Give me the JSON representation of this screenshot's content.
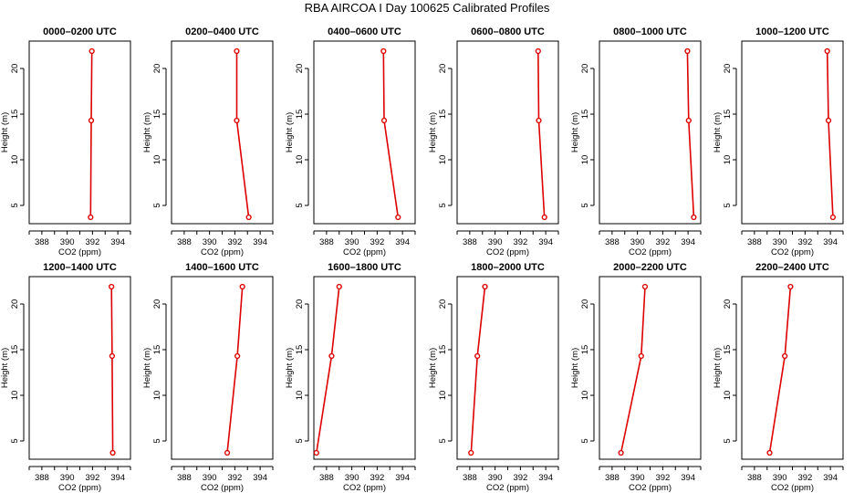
{
  "figure": {
    "title": "RBA AIRCOA I  Day 100625  Calibrated Profiles",
    "colors": {
      "series": "#dd0000",
      "axes": "#000000",
      "background": "#ffffff"
    }
  },
  "chart_data": [
    {
      "type": "line",
      "title": "0000–0200 UTC",
      "xlabel": "CO2 (ppm)",
      "ylabel": "Height (m)",
      "xlim": [
        387,
        395
      ],
      "ylim": [
        3,
        23
      ],
      "xticks": [
        388,
        390,
        392,
        394
      ],
      "yticks": [
        5,
        10,
        15,
        20
      ],
      "series": [
        {
          "x": [
            391.85,
            391.9,
            391.95
          ],
          "y": [
            3.7,
            14.3,
            21.9
          ]
        }
      ]
    },
    {
      "type": "line",
      "title": "0200–0400 UTC",
      "xlabel": "CO2 (ppm)",
      "ylabel": "Height (m)",
      "xlim": [
        387,
        395
      ],
      "ylim": [
        3,
        23
      ],
      "xticks": [
        388,
        390,
        392,
        394
      ],
      "yticks": [
        5,
        10,
        15,
        20
      ],
      "series": [
        {
          "x": [
            393.1,
            392.15,
            392.15
          ],
          "y": [
            3.7,
            14.3,
            21.9
          ]
        }
      ]
    },
    {
      "type": "line",
      "title": "0400–0600 UTC",
      "xlabel": "CO2 (ppm)",
      "ylabel": "Height (m)",
      "xlim": [
        387,
        395
      ],
      "ylim": [
        3,
        23
      ],
      "xticks": [
        388,
        390,
        392,
        394
      ],
      "yticks": [
        5,
        10,
        15,
        20
      ],
      "series": [
        {
          "x": [
            393.65,
            392.55,
            392.5
          ],
          "y": [
            3.7,
            14.3,
            21.9
          ]
        }
      ]
    },
    {
      "type": "line",
      "title": "0600–0800 UTC",
      "xlabel": "CO2 (ppm)",
      "ylabel": "Height (m)",
      "xlim": [
        387,
        395
      ],
      "ylim": [
        3,
        23
      ],
      "xticks": [
        388,
        390,
        392,
        394
      ],
      "yticks": [
        5,
        10,
        15,
        20
      ],
      "series": [
        {
          "x": [
            393.9,
            393.45,
            393.4
          ],
          "y": [
            3.7,
            14.3,
            21.9
          ]
        }
      ]
    },
    {
      "type": "line",
      "title": "0800–1000 UTC",
      "xlabel": "CO2 (ppm)",
      "ylabel": "Height (m)",
      "xlim": [
        387,
        395
      ],
      "ylim": [
        3,
        23
      ],
      "xticks": [
        388,
        390,
        392,
        394
      ],
      "yticks": [
        5,
        10,
        15,
        20
      ],
      "series": [
        {
          "x": [
            394.45,
            394.05,
            393.95
          ],
          "y": [
            3.7,
            14.3,
            21.9
          ]
        }
      ]
    },
    {
      "type": "line",
      "title": "1000–1200 UTC",
      "xlabel": "CO2 (ppm)",
      "ylabel": "Height (m)",
      "xlim": [
        387,
        395
      ],
      "ylim": [
        3,
        23
      ],
      "xticks": [
        388,
        390,
        392,
        394
      ],
      "yticks": [
        5,
        10,
        15,
        20
      ],
      "series": [
        {
          "x": [
            394.2,
            393.85,
            393.75
          ],
          "y": [
            3.7,
            14.3,
            21.9
          ]
        }
      ]
    },
    {
      "type": "line",
      "title": "1200–1400 UTC",
      "xlabel": "CO2 (ppm)",
      "ylabel": "Height (m)",
      "xlim": [
        387,
        395
      ],
      "ylim": [
        3,
        23
      ],
      "xticks": [
        388,
        390,
        392,
        394
      ],
      "yticks": [
        5,
        10,
        15,
        20
      ],
      "series": [
        {
          "x": [
            393.6,
            393.55,
            393.5
          ],
          "y": [
            3.7,
            14.3,
            21.9
          ]
        }
      ]
    },
    {
      "type": "line",
      "title": "1400–1600 UTC",
      "xlabel": "CO2 (ppm)",
      "ylabel": "Height (m)",
      "xlim": [
        387,
        395
      ],
      "ylim": [
        3,
        23
      ],
      "xticks": [
        388,
        390,
        392,
        394
      ],
      "yticks": [
        5,
        10,
        15,
        20
      ],
      "series": [
        {
          "x": [
            391.4,
            392.2,
            392.6
          ],
          "y": [
            3.7,
            14.3,
            21.9
          ]
        }
      ]
    },
    {
      "type": "line",
      "title": "1600–1800 UTC",
      "xlabel": "CO2 (ppm)",
      "ylabel": "Height (m)",
      "xlim": [
        387,
        395
      ],
      "ylim": [
        3,
        23
      ],
      "xticks": [
        388,
        390,
        392,
        394
      ],
      "yticks": [
        5,
        10,
        15,
        20
      ],
      "series": [
        {
          "x": [
            387.2,
            388.4,
            389.0
          ],
          "y": [
            3.7,
            14.3,
            21.9
          ]
        }
      ]
    },
    {
      "type": "line",
      "title": "1800–2000 UTC",
      "xlabel": "CO2 (ppm)",
      "ylabel": "Height (m)",
      "xlim": [
        387,
        395
      ],
      "ylim": [
        3,
        23
      ],
      "xticks": [
        388,
        390,
        392,
        394
      ],
      "yticks": [
        5,
        10,
        15,
        20
      ],
      "series": [
        {
          "x": [
            388.1,
            388.6,
            389.2
          ],
          "y": [
            3.7,
            14.3,
            21.9
          ]
        }
      ]
    },
    {
      "type": "line",
      "title": "2000–2200 UTC",
      "xlabel": "CO2 (ppm)",
      "ylabel": "Height (m)",
      "xlim": [
        387,
        395
      ],
      "ylim": [
        3,
        23
      ],
      "xticks": [
        388,
        390,
        392,
        394
      ],
      "yticks": [
        5,
        10,
        15,
        20
      ],
      "series": [
        {
          "x": [
            388.7,
            390.3,
            390.6
          ],
          "y": [
            3.7,
            14.3,
            21.9
          ]
        }
      ]
    },
    {
      "type": "line",
      "title": "2200–2400 UTC",
      "xlabel": "CO2 (ppm)",
      "ylabel": "Height (m)",
      "xlim": [
        387,
        395
      ],
      "ylim": [
        3,
        23
      ],
      "xticks": [
        388,
        390,
        392,
        394
      ],
      "yticks": [
        5,
        10,
        15,
        20
      ],
      "series": [
        {
          "x": [
            389.2,
            390.4,
            390.85
          ],
          "y": [
            3.7,
            14.3,
            21.9
          ]
        }
      ]
    }
  ]
}
